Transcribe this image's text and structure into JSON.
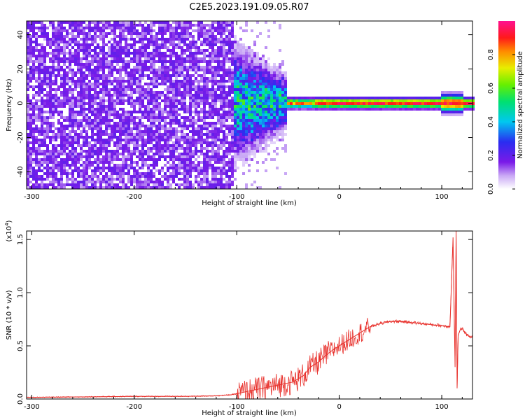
{
  "figure": {
    "title": "C2E5.2023.191.09.05.R07"
  },
  "chart_data": [
    {
      "type": "heatmap",
      "xlabel": "Height of straight line (km)",
      "ylabel": "Frequency (Hz)",
      "xlim": [
        -305,
        130
      ],
      "ylim": [
        -50,
        48
      ],
      "x_ticks": [
        "-300",
        "-200",
        "-100",
        "0",
        "100"
      ],
      "y_ticks": [
        "40",
        "20",
        "0",
        "-20",
        "-40"
      ],
      "colorbar": {
        "label": "Normalized spectral amplitude",
        "range": [
          0,
          1
        ],
        "ticks": [
          "0.0",
          "0.2",
          "0.4",
          "0.6",
          "0.8"
        ],
        "colormap": "rainbow (white → purple → blue → cyan → green → yellow → red → magenta)"
      },
      "description_points": [
        {
          "x_range": [
            -305,
            -102
          ],
          "freq_range": [
            -50,
            48
          ],
          "amplitude": 0.05,
          "pattern": "broadband noise"
        },
        {
          "x_range": [
            -102,
            -50
          ],
          "freq_center": 0,
          "freq_halfwidth": 8,
          "amplitude": 0.45,
          "pattern": "emerging signal"
        },
        {
          "x_range": [
            -50,
            130
          ],
          "freq_center": 0,
          "freq_halfwidth": 3,
          "amplitude": 0.95,
          "pattern": "strong narrow line near 0 Hz"
        }
      ],
      "grid": false
    },
    {
      "type": "line",
      "xlabel": "Height of straight line (km)",
      "ylabel": "SNR (10 * v/v)",
      "y_multiplier": "(x10",
      "y_multiplier_exp": "4",
      "y_multiplier_close": ")",
      "xlim": [
        -305,
        130
      ],
      "ylim": [
        0,
        1.58
      ],
      "x_ticks": [
        "-300",
        "-200",
        "-100",
        "0",
        "100"
      ],
      "y_ticks": [
        "0.0",
        "0.5",
        "1.0",
        "1.5"
      ],
      "series": [
        {
          "color": "#e8322d",
          "x": [
            -305,
            -250,
            -200,
            -150,
            -120,
            -105,
            -95,
            -85,
            -75,
            -65,
            -55,
            -45,
            -35,
            -28,
            -20,
            -12,
            -5,
            0,
            10,
            20,
            30,
            40,
            50,
            60,
            70,
            80,
            90,
            100,
            108,
            111,
            113,
            114,
            115,
            116,
            118,
            120,
            125,
            130
          ],
          "y": [
            0.015,
            0.02,
            0.025,
            0.025,
            0.03,
            0.04,
            0.06,
            0.08,
            0.1,
            0.12,
            0.14,
            0.16,
            0.22,
            0.3,
            0.35,
            0.42,
            0.47,
            0.5,
            0.56,
            0.62,
            0.68,
            0.71,
            0.73,
            0.73,
            0.72,
            0.71,
            0.7,
            0.69,
            0.68,
            1.52,
            0.3,
            1.58,
            0.1,
            0.6,
            0.65,
            0.66,
            0.6,
            0.58
          ]
        }
      ],
      "grid": false
    }
  ]
}
